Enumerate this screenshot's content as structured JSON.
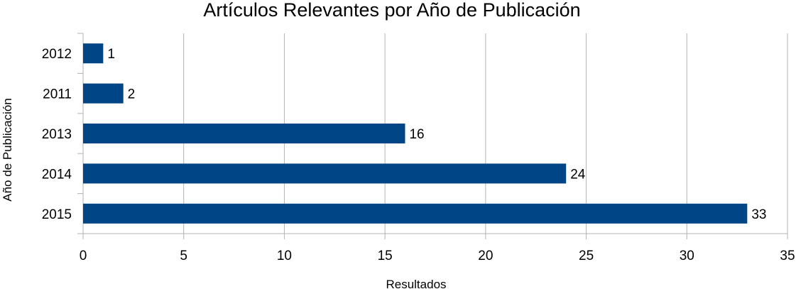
{
  "chart_data": {
    "type": "bar",
    "orientation": "horizontal",
    "title": "Artículos Relevantes por Año de Publicación",
    "xlabel": "Resultados",
    "ylabel": "Año de Publicación",
    "categories": [
      "2012",
      "2011",
      "2013",
      "2014",
      "2015"
    ],
    "values": [
      1,
      2,
      16,
      24,
      33
    ],
    "data_labels": [
      "1",
      "2",
      "16",
      "24",
      "33"
    ],
    "xlim": [
      0,
      35
    ],
    "x_ticks": [
      0,
      5,
      10,
      15,
      20,
      25,
      30,
      35
    ],
    "x_tick_labels": [
      "0",
      "5",
      "10",
      "15",
      "20",
      "25",
      "30",
      "35"
    ],
    "grid": true,
    "legend": "none",
    "bar_color": "#004586",
    "grid_color": "#b3b3b3"
  }
}
